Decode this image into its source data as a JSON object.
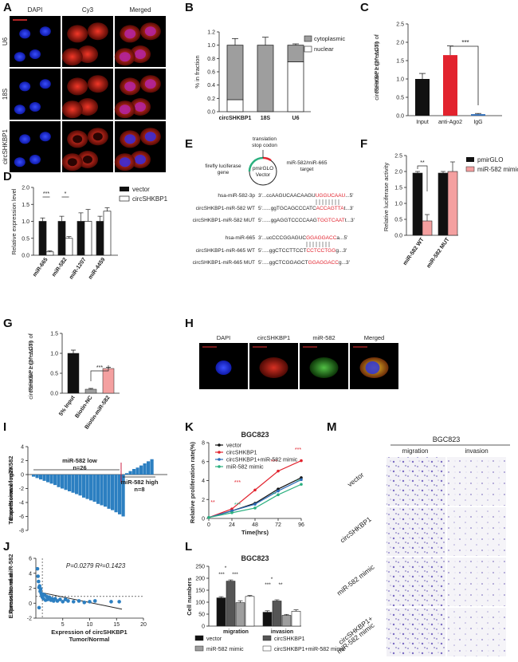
{
  "panel_letters": [
    "A",
    "B",
    "C",
    "D",
    "E",
    "F",
    "G",
    "H",
    "I",
    "J",
    "K",
    "L",
    "M"
  ],
  "panelA": {
    "col_labels": [
      "DAPI",
      "Cy3",
      "Merged"
    ],
    "row_labels": [
      "U6",
      "18S",
      "circSHKBP1"
    ]
  },
  "panelE": {
    "top_label": "translation\nstop codon",
    "left_label": "firefly luciferase\ngene",
    "right_label": "miR-582/miR-665\ntarget",
    "center_label": "pmirGLO\nVector",
    "seq_rows": [
      {
        "name": "hsa-miR-582-3p",
        "seq_plain": "3'...ccAAGUCAACAAGU",
        "seq_red": "UGGUCAAU",
        "seq_end": "...5'"
      },
      {
        "name": "circSHKBP1-miR-582 WT",
        "seq_plain": "5'......ggTGCAGCCCATC",
        "seq_red": "ACCAGTTA",
        "seq_end": "t...3'"
      },
      {
        "name": "circSHKBP1-miR-582 MUT",
        "seq_plain": "5'......ggAGGTCCCCAAG",
        "seq_red": "TGGTCAAT",
        "seq_end": "t...3'"
      },
      {
        "name": "hsa-miR-665",
        "seq_plain": "3'...ucCCCGGAGUC",
        "seq_red": "GGAGGACC",
        "seq_end": "a...5'"
      },
      {
        "name": "circSHKBP1-miR-665 WT",
        "seq_plain": "5'.....ggCTCCTTCCT",
        "seq_red": "CCTCCTGG",
        "seq_end": "g...3'"
      },
      {
        "name": "circSHKBP1-miR-665 MUT",
        "seq_plain": "5'.....ggCTCGGAGCT",
        "seq_red": "GGAGGACC",
        "seq_end": "g...3'"
      }
    ]
  },
  "panelH": {
    "labels": [
      "DAPI",
      "circSHKBP1",
      "miR-582",
      "Merged"
    ]
  },
  "panelM": {
    "title": "BGC823",
    "col_labels": [
      "migration",
      "invasion"
    ],
    "row_labels": [
      "vector",
      "circSHKBP1",
      "miR-582 mimic",
      "circSHKBP1+\nmiR-582 mimic"
    ]
  },
  "chart_data": [
    {
      "panel": "B",
      "type": "bar",
      "categories": [
        "circSHKBP1",
        "18S",
        "U6"
      ],
      "series": [
        {
          "name": "cytoplasmic",
          "values": [
            0.82,
            1.0,
            0.25
          ]
        },
        {
          "name": "nuclear",
          "values": [
            0.18,
            0.0,
            0.75
          ]
        }
      ],
      "errors": [
        0.1,
        0.12,
        0.02
      ],
      "ylabel": "% in fraction",
      "ylim": [
        0,
        1.2
      ],
      "yticks": [
        "0.0",
        "0.2",
        "0.4",
        "0.6",
        "0.8",
        "1.0",
        "1.2"
      ],
      "legend": "top-right",
      "colors": {
        "cytoplasmic": "#9e9e9e",
        "nuclear": "#ffffff"
      }
    },
    {
      "panel": "C",
      "type": "bar",
      "categories": [
        "Input",
        "anti-Ago2",
        "IgG"
      ],
      "values": [
        1.0,
        1.65,
        0.04
      ],
      "errors": [
        0.15,
        0.25,
        0.02
      ],
      "colors": [
        "#111111",
        "#e2232e",
        "#2c6cb8"
      ],
      "ylabel": "Relative expression of circSHKBP1 (2^-ΔCT)",
      "ylim": [
        0,
        2.5
      ],
      "yticks": [
        "0.0",
        "0.5",
        "1.0",
        "1.5",
        "2.0",
        "2.5"
      ],
      "annotation": "***"
    },
    {
      "panel": "D",
      "type": "bar",
      "categories": [
        "miR-665",
        "miR-582",
        "miR-1207",
        "miR-4459"
      ],
      "series": [
        {
          "name": "vector",
          "values": [
            1.0,
            1.0,
            1.0,
            1.0
          ],
          "errors": [
            0.1,
            0.15,
            0.25,
            0.15
          ]
        },
        {
          "name": "circSHKBP1",
          "values": [
            0.1,
            0.5,
            1.0,
            1.3
          ],
          "errors": [
            0.03,
            0.05,
            0.35,
            0.1
          ]
        }
      ],
      "ylabel": "Relative expression level",
      "ylim": [
        0,
        2.0
      ],
      "yticks": [
        "0.0",
        "0.5",
        "1.0",
        "1.5",
        "2.0"
      ],
      "annotations": [
        "***",
        "*",
        "",
        ""
      ],
      "legend": "top-right",
      "colors": {
        "vector": "#111111",
        "circSHKBP1": "#ffffff"
      }
    },
    {
      "panel": "F",
      "type": "bar",
      "categories": [
        "miR-582 WT",
        "miR-582 MUT"
      ],
      "series": [
        {
          "name": "pmirGLO",
          "values": [
            1.95,
            1.95
          ],
          "errors": [
            0.05,
            0.05
          ]
        },
        {
          "name": "miR-582 mimic",
          "values": [
            0.45,
            2.0
          ],
          "errors": [
            0.2,
            0.3
          ]
        }
      ],
      "ylabel": "Relative luciferase activity",
      "ylim": [
        0,
        2.5
      ],
      "yticks": [
        "0.0",
        "0.5",
        "1.0",
        "1.5",
        "2.0",
        "2.5"
      ],
      "annotations": [
        "**",
        ""
      ],
      "legend": "top-right",
      "colors": {
        "pmirGLO": "#111111",
        "miR-582 mimic": "#f4a0a0"
      }
    },
    {
      "panel": "G",
      "type": "bar",
      "categories": [
        "5% Input",
        "Biotin-NC",
        "Biotin-miR-582"
      ],
      "values": [
        1.0,
        0.1,
        0.62
      ],
      "errors": [
        0.08,
        0.02,
        0.03
      ],
      "colors": [
        "#111111",
        "#9e9e9e",
        "#f4a0a0"
      ],
      "ylabel": "Relative expression of circSHKBP1 (2^-ΔCT)",
      "ylim": [
        0,
        1.5
      ],
      "yticks": [
        "0.0",
        "0.5",
        "1.0",
        "1.5"
      ],
      "annotation": "***"
    },
    {
      "panel": "I",
      "type": "bar",
      "values": [
        -0.3,
        -0.5,
        -0.7,
        -0.9,
        -1.1,
        -1.3,
        -1.5,
        -1.8,
        -2.0,
        -2.2,
        -2.4,
        -2.6,
        -2.8,
        -3.0,
        -3.3,
        -3.5,
        -3.7,
        -3.9,
        -4.2,
        -4.4,
        -4.6,
        -4.9,
        -5.1,
        -5.4,
        -5.7,
        -6.0,
        0.2,
        0.5,
        0.8,
        1.0,
        1.3,
        1.6,
        1.9,
        2.2
      ],
      "ylabel": "Expression of miR-582\nTumor/Normal log2X",
      "ylim": [
        -8,
        4
      ],
      "yticks": [
        "4",
        "2",
        "0",
        "-2",
        "-4",
        "-6",
        "-8"
      ],
      "annotations": [
        {
          "text": "miR-582 low\nn=26"
        },
        {
          "text": "miR-582 high\nn=8"
        }
      ],
      "colors": [
        "#2c7fc1"
      ]
    },
    {
      "panel": "J",
      "type": "scatter",
      "xlabel": "Expression of circSHKBP1\nTumor/Normal",
      "ylabel": "Expression of miR-582\nTumor/Normal",
      "xlim": [
        0,
        20
      ],
      "ylim": [
        -2,
        6
      ],
      "xticks": [
        "5",
        "10",
        "15",
        "20"
      ],
      "yticks": [
        "-2",
        "0",
        "2",
        "4",
        "6"
      ],
      "stat_text": "P=0.0279 R²=0.1423",
      "points": [
        [
          0.3,
          4.6
        ],
        [
          0.4,
          3.6
        ],
        [
          0.5,
          2.9
        ],
        [
          0.6,
          2.1
        ],
        [
          0.7,
          2.3
        ],
        [
          0.8,
          1.6
        ],
        [
          0.9,
          1.9
        ],
        [
          1.0,
          1.3
        ],
        [
          1.1,
          1.0
        ],
        [
          1.2,
          0.8
        ],
        [
          1.3,
          1.2
        ],
        [
          1.4,
          0.6
        ],
        [
          1.6,
          1.1
        ],
        [
          1.8,
          0.4
        ],
        [
          2.0,
          0.9
        ],
        [
          2.2,
          0.5
        ],
        [
          2.5,
          0.8
        ],
        [
          2.8,
          0.4
        ],
        [
          3.0,
          0.6
        ],
        [
          3.3,
          0.3
        ],
        [
          3.6,
          0.6
        ],
        [
          4.0,
          0.3
        ],
        [
          4.5,
          0.5
        ],
        [
          5.0,
          0.2
        ],
        [
          5.5,
          0.5
        ],
        [
          6.0,
          0.3
        ],
        [
          7.0,
          0.2
        ],
        [
          8.0,
          0.3
        ],
        [
          9.0,
          0.1
        ],
        [
          10.0,
          0.2
        ],
        [
          11.0,
          0.3
        ],
        [
          14.0,
          0.2
        ],
        [
          15.5,
          0.2
        ],
        [
          0.6,
          -0.6
        ]
      ],
      "fit_line": [
        [
          0.5,
          1.5
        ],
        [
          16,
          -0.8
        ]
      ],
      "ref_line": 0.9,
      "colors": [
        "#2c7fc1"
      ]
    },
    {
      "panel": "K",
      "type": "line",
      "title": "BGC823",
      "x": [
        0,
        24,
        48,
        72,
        96
      ],
      "series": [
        {
          "name": "vector",
          "values": [
            0.1,
            0.8,
            1.6,
            3.1,
            4.3
          ],
          "color": "#111111"
        },
        {
          "name": "circSHKBP1",
          "values": [
            0.1,
            1.0,
            3.0,
            5.0,
            6.1
          ],
          "color": "#e2232e"
        },
        {
          "name": "circSHKBP1+miR-582 mimic",
          "values": [
            0.1,
            0.8,
            1.5,
            2.9,
            4.1
          ],
          "color": "#2c6cb8"
        },
        {
          "name": "miR-582 mimic",
          "values": [
            0.1,
            0.6,
            1.1,
            2.5,
            3.6
          ],
          "color": "#2bb07f"
        }
      ],
      "xlabel": "Time(hrs)",
      "ylabel": "Relative proliferation rate(%)",
      "xticks": [
        "0",
        "24",
        "48",
        "72",
        "96"
      ],
      "yticks": [
        "0",
        "2",
        "4",
        "6",
        "8"
      ],
      "ylim": [
        0,
        8
      ],
      "annotations": [
        {
          "text": "***",
          "color": "#e2232e"
        },
        {
          "text": "***",
          "color": "#e2232e"
        },
        {
          "text": "***",
          "color": "#e2232e"
        },
        {
          "text": "**",
          "color": "#e2232e"
        },
        {
          "text": "***",
          "color": "#2bb07f"
        },
        {
          "text": "**",
          "color": "#2bb07f"
        },
        {
          "text": "**",
          "color": "#2bb07f"
        }
      ],
      "legend": "top-left"
    },
    {
      "panel": "L",
      "type": "bar",
      "title": "BGC823",
      "categories": [
        "migration",
        "invasion"
      ],
      "series": [
        {
          "name": "vector",
          "values": [
            118,
            58
          ],
          "errors": [
            5,
            6
          ],
          "color": "#111111"
        },
        {
          "name": "circSHKBP1",
          "values": [
            188,
            105
          ],
          "errors": [
            5,
            5
          ],
          "color": "#555555"
        },
        {
          "name": "miR-582 mimic",
          "values": [
            98,
            45
          ],
          "errors": [
            8,
            4
          ],
          "color": "#9e9e9e"
        },
        {
          "name": "circSHKBP1+miR-582 mimic",
          "values": [
            124,
            62
          ],
          "errors": [
            4,
            6
          ],
          "color": "#ffffff"
        }
      ],
      "ylabel": "Cell numbers",
      "ylim": [
        0,
        250
      ],
      "yticks": [
        "0",
        "50",
        "100",
        "150",
        "200",
        "250"
      ],
      "annotations": [
        "*",
        "***",
        "***",
        "*",
        "***",
        "**"
      ],
      "legend": "bottom"
    }
  ]
}
